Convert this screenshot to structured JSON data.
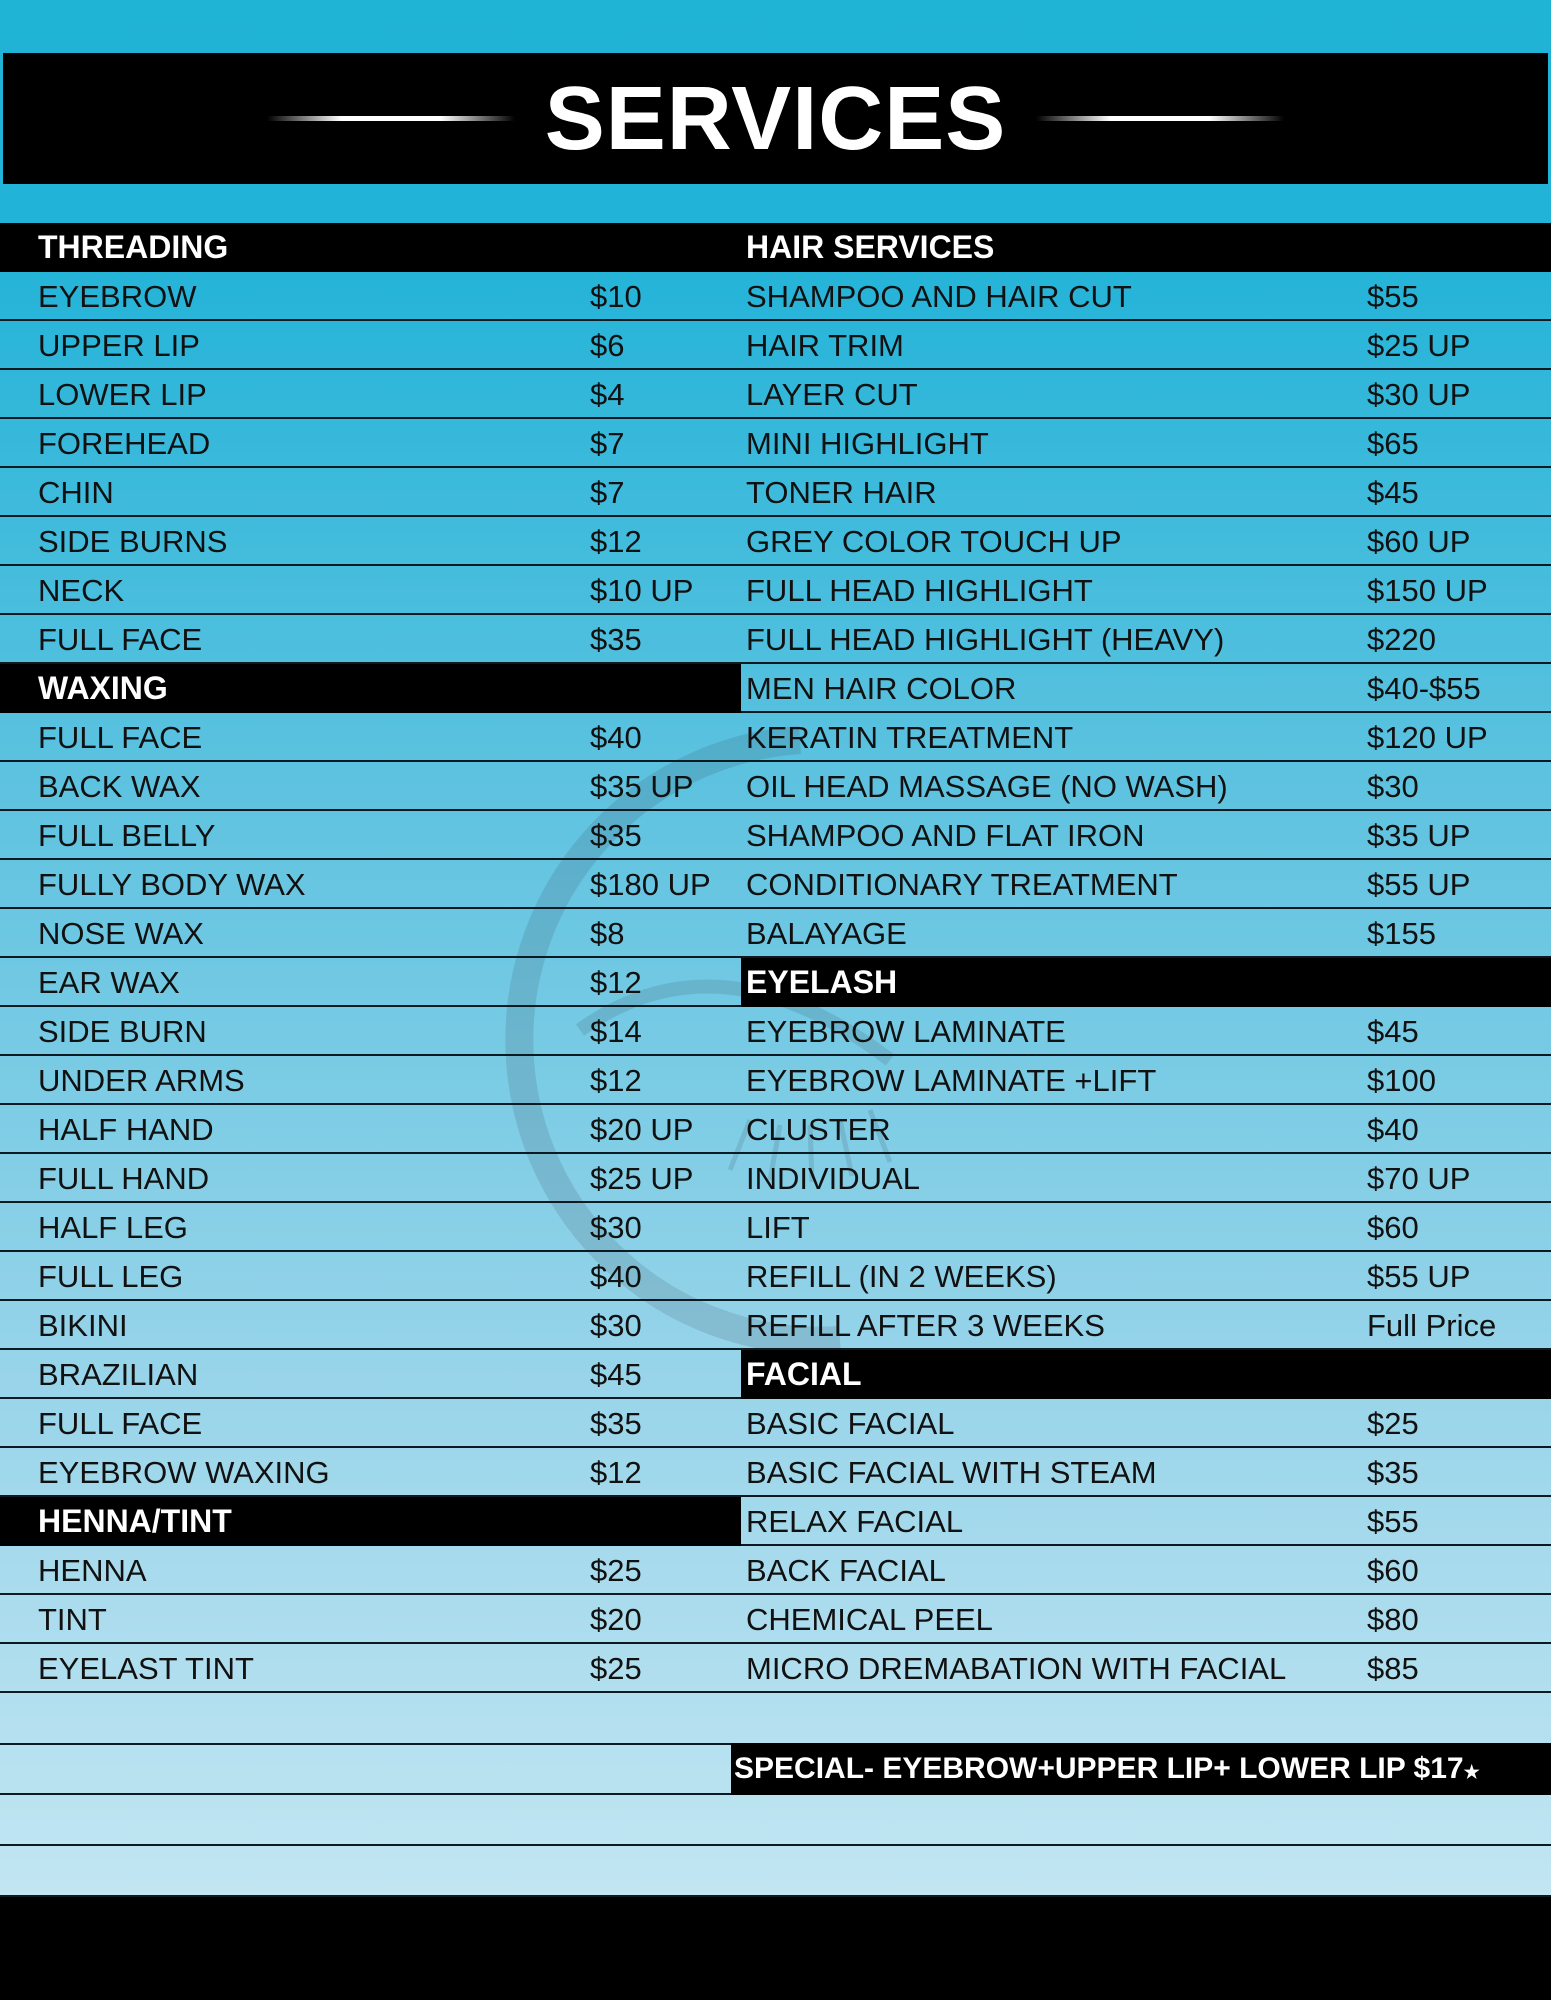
{
  "header": {
    "title": "SERVICES"
  },
  "left_column": [
    {
      "type": "header",
      "label": "THREADING"
    },
    {
      "label": "EYEBROW",
      "price": "$10"
    },
    {
      "label": "UPPER LIP",
      "price": "$6"
    },
    {
      "label": "LOWER LIP",
      "price": "$4"
    },
    {
      "label": "FOREHEAD",
      "price": "$7"
    },
    {
      "label": "CHIN",
      "price": "$7"
    },
    {
      "label": "SIDE BURNS",
      "price": "$12"
    },
    {
      "label": "NECK",
      "price": "$10 UP"
    },
    {
      "label": "FULL FACE",
      "price": "$35"
    },
    {
      "type": "header",
      "label": "WAXING"
    },
    {
      "label": "FULL FACE",
      "price": "$40"
    },
    {
      "label": "BACK WAX",
      "price": "$35 UP"
    },
    {
      "label": "FULL BELLY",
      "price": "$35"
    },
    {
      "label": "FULLY BODY WAX",
      "price": "$180 UP"
    },
    {
      "label": "NOSE WAX",
      "price": "$8"
    },
    {
      "label": "EAR WAX",
      "price": "$12"
    },
    {
      "label": "SIDE BURN",
      "price": "$14"
    },
    {
      "label": "UNDER ARMS",
      "price": "$12"
    },
    {
      "label": "HALF HAND",
      "price": "$20 UP"
    },
    {
      "label": "FULL HAND",
      "price": "$25 UP"
    },
    {
      "label": "HALF LEG",
      "price": "$30"
    },
    {
      "label": "FULL LEG",
      "price": "$40"
    },
    {
      "label": "BIKINI",
      "price": "$30"
    },
    {
      "label": "BRAZILIAN",
      "price": "$45"
    },
    {
      "label": "FULL FACE",
      "price": "$35"
    },
    {
      "label": "EYEBROW WAXING",
      "price": "$12"
    },
    {
      "type": "header",
      "label": "HENNA/TINT"
    },
    {
      "label": "HENNA",
      "price": "$25"
    },
    {
      "label": "TINT",
      "price": "$20"
    },
    {
      "label": "EYELAST TINT",
      "price": "$25"
    }
  ],
  "right_column": [
    {
      "type": "header",
      "label": "HAIR SERVICES"
    },
    {
      "label": "SHAMPOO AND HAIR CUT",
      "price": "$55"
    },
    {
      "label": "HAIR TRIM",
      "price": "$25 UP"
    },
    {
      "label": "LAYER CUT",
      "price": "$30 UP"
    },
    {
      "label": "MINI HIGHLIGHT",
      "price": "$65"
    },
    {
      "label": "TONER HAIR",
      "price": "$45"
    },
    {
      "label": "GREY COLOR TOUCH UP",
      "price": "$60 UP"
    },
    {
      "label": "FULL HEAD HIGHLIGHT",
      "price": "$150 UP"
    },
    {
      "label": "FULL HEAD HIGHLIGHT (HEAVY)",
      "price": "$220"
    },
    {
      "label": "MEN HAIR COLOR",
      "price": "$40-$55"
    },
    {
      "label": "KERATIN TREATMENT",
      "price": "$120 UP"
    },
    {
      "label": "OIL HEAD MASSAGE (NO WASH)",
      "price": "$30"
    },
    {
      "label": "SHAMPOO AND FLAT IRON",
      "price": "$35 UP"
    },
    {
      "label": "CONDITIONARY TREATMENT",
      "price": "$55 UP"
    },
    {
      "label": "BALAYAGE",
      "price": "$155"
    },
    {
      "type": "header",
      "label": "EYELASH"
    },
    {
      "label": "EYEBROW LAMINATE",
      "price": "$45"
    },
    {
      "label": "EYEBROW LAMINATE +LIFT",
      "price": "$100"
    },
    {
      "label": "CLUSTER",
      "price": "$40"
    },
    {
      "label": "INDIVIDUAL",
      "price": "$70 UP"
    },
    {
      "label": "LIFT",
      "price": "$60"
    },
    {
      "label": "REFILL (IN 2 WEEKS)",
      "price": "$55 UP"
    },
    {
      "label": "REFILL AFTER 3 WEEKS",
      "price": "Full  Price"
    },
    {
      "type": "header",
      "label": "FACIAL"
    },
    {
      "label": "BASIC FACIAL",
      "price": "$25"
    },
    {
      "label": "BASIC FACIAL WITH STEAM",
      "price": "$35"
    },
    {
      "label": "RELAX FACIAL",
      "price": "$55"
    },
    {
      "label": "BACK FACIAL",
      "price": "$60"
    },
    {
      "label": "CHEMICAL PEEL",
      "price": "$80"
    },
    {
      "label": "MICRO DREMABATION WITH FACIAL",
      "price": "$85"
    }
  ],
  "special": {
    "text": "SPECIAL- EYEBROW+UPPER LIP+ LOWER LIP  $17",
    "star": "★"
  },
  "colors": {
    "header_bg": "#000000",
    "accent": "#1fb3d6"
  }
}
